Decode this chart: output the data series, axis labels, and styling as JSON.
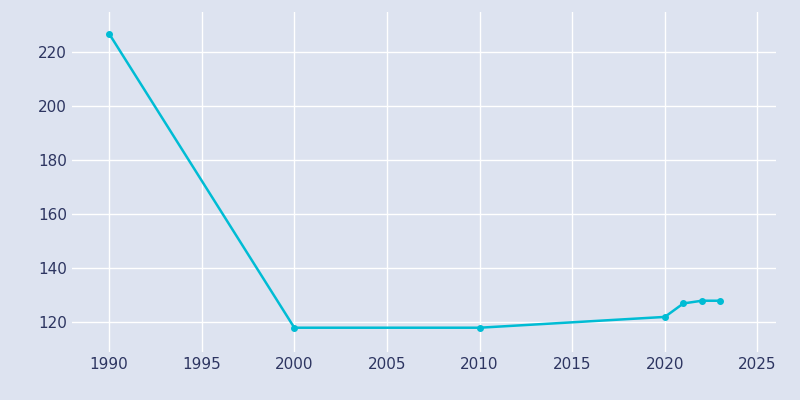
{
  "years": [
    1990,
    2000,
    2010,
    2020,
    2021,
    2022,
    2023
  ],
  "population": [
    227,
    118,
    118,
    122,
    127,
    128,
    128
  ],
  "line_color": "#00bcd4",
  "marker": "o",
  "marker_size": 4,
  "line_width": 1.8,
  "figure_bg_color": "#dde3f0",
  "axes_bg_color": "#dde3f0",
  "grid_color": "#ffffff",
  "tick_label_color": "#2d3561",
  "xlim": [
    1988,
    2026
  ],
  "ylim": [
    109,
    235
  ],
  "xticks": [
    1990,
    1995,
    2000,
    2005,
    2010,
    2015,
    2020,
    2025
  ],
  "yticks": [
    120,
    140,
    160,
    180,
    200,
    220
  ],
  "figsize": [
    8.0,
    4.0
  ],
  "dpi": 100
}
